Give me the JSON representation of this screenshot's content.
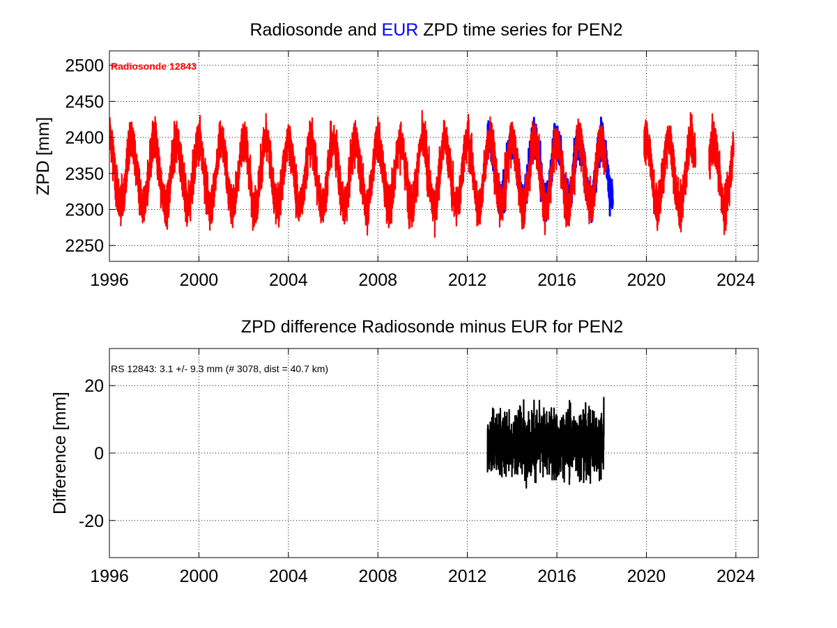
{
  "chart_data": [
    {
      "type": "line",
      "title_parts": [
        {
          "text": "Radiosonde and ",
          "color": "#000000"
        },
        {
          "text": "EUR",
          "color": "#0000ff"
        },
        {
          "text": " ZPD time series for PEN2",
          "color": "#000000"
        }
      ],
      "ylabel": "ZPD [mm]",
      "xlim": [
        1996,
        2025
      ],
      "ylim": [
        2228,
        2520
      ],
      "xticks": [
        1996,
        2000,
        2004,
        2008,
        2012,
        2016,
        2020,
        2024
      ],
      "yticks": [
        2250,
        2300,
        2350,
        2400,
        2450,
        2500
      ],
      "grid": true,
      "annotation": {
        "text": "Radiosonde 12843",
        "color": "#ff0000",
        "position": "top-left"
      },
      "series": [
        {
          "color": "#0000ff",
          "segments": [
            [
              2012.9,
              2018.5
            ]
          ],
          "mean": 2355,
          "amplitude": 42,
          "noise": 25,
          "peaks_doy": 0.6
        },
        {
          "color": "#ff0000",
          "segments": [
            [
              1996.0,
              2018.2
            ],
            [
              2019.9,
              2022.2
            ],
            [
              2022.8,
              2023.9
            ]
          ],
          "mean": 2350,
          "amplitude": 45,
          "noise": 30,
          "peaks_doy": 0.6
        }
      ]
    },
    {
      "type": "line",
      "title_parts": [
        {
          "text": "ZPD difference Radiosonde minus EUR for PEN2",
          "color": "#000000"
        }
      ],
      "ylabel": "Difference [mm]",
      "xlim": [
        1996,
        2025
      ],
      "ylim": [
        -31,
        31
      ],
      "xticks": [
        1996,
        2000,
        2004,
        2008,
        2012,
        2016,
        2020,
        2024
      ],
      "yticks": [
        -20,
        0,
        20
      ],
      "grid": true,
      "annotation": {
        "text": "RS 12843: 3.1 +/- 9.3 mm (# 3078, dist =  40.7 km)",
        "color": "#000000",
        "position": "top-left"
      },
      "series": [
        {
          "color": "#000000",
          "segments": [
            [
              2012.9,
              2018.1
            ]
          ],
          "mean": 3.1,
          "std": 9.3
        }
      ]
    }
  ]
}
